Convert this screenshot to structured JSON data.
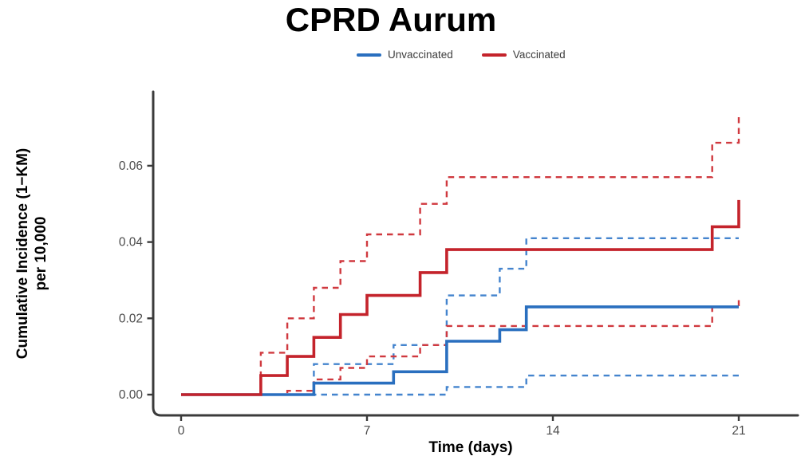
{
  "title": "CPRD Aurum",
  "legend": {
    "items": [
      {
        "label": "Unvaccinated",
        "color": "#2A6FBF"
      },
      {
        "label": "Vaccinated",
        "color": "#C4232B"
      }
    ]
  },
  "chart_data": {
    "type": "line",
    "subtype": "step-cumulative-incidence (1-KM)",
    "title": "CPRD Aurum",
    "xlabel": "Time (days)",
    "ylabel": "Cumulative Incidence (1−KM) per 10,000",
    "ylabel_line1": "Cumulative Incidence (1−KM)",
    "ylabel_line2": "per 10,000",
    "xlim": [
      0,
      21.5
    ],
    "ylim": [
      0,
      0.076
    ],
    "grid": false,
    "legend_position": "top-center",
    "x_ticks": [
      0,
      7,
      14,
      21
    ],
    "x_tick_labels": [
      "0",
      "7",
      "14",
      "21"
    ],
    "y_ticks": [
      0.0,
      0.02,
      0.04,
      0.06
    ],
    "y_tick_labels": [
      "0.00",
      "0.02",
      "0.04",
      "0.06"
    ],
    "series": [
      {
        "name": "Unvaccinated lower 95% CI",
        "group": "Unvaccinated",
        "role": "ci_lower",
        "color": "#4484CE",
        "dashed": true,
        "end_day": 21,
        "points": [
          [
            0,
            0
          ],
          [
            10,
            0.002
          ],
          [
            13,
            0.005
          ]
        ]
      },
      {
        "name": "Unvaccinated upper 95% CI",
        "group": "Unvaccinated",
        "role": "ci_upper",
        "color": "#4484CE",
        "dashed": true,
        "end_day": 21,
        "points": [
          [
            0,
            0
          ],
          [
            5,
            0.008
          ],
          [
            8,
            0.013
          ],
          [
            10,
            0.026
          ],
          [
            12,
            0.033
          ],
          [
            13,
            0.041
          ]
        ]
      },
      {
        "name": "Vaccinated lower 95% CI",
        "group": "Vaccinated",
        "role": "ci_lower",
        "color": "#D0393F",
        "dashed": true,
        "end_day": 21,
        "points": [
          [
            0,
            0
          ],
          [
            4,
            0.001
          ],
          [
            5,
            0.004
          ],
          [
            6,
            0.007
          ],
          [
            7,
            0.01
          ],
          [
            9,
            0.013
          ],
          [
            10,
            0.018
          ],
          [
            20,
            0.023
          ],
          [
            21,
            0.026
          ]
        ]
      },
      {
        "name": "Vaccinated upper 95% CI",
        "group": "Vaccinated",
        "role": "ci_upper",
        "color": "#D0393F",
        "dashed": true,
        "end_day": 21,
        "points": [
          [
            0,
            0
          ],
          [
            3,
            0.011
          ],
          [
            4,
            0.02
          ],
          [
            5,
            0.028
          ],
          [
            6,
            0.035
          ],
          [
            7,
            0.042
          ],
          [
            9,
            0.05
          ],
          [
            10,
            0.057
          ],
          [
            20,
            0.066
          ],
          [
            21,
            0.073
          ]
        ]
      },
      {
        "name": "Unvaccinated",
        "group": "Unvaccinated",
        "role": "estimate",
        "color": "#2A6FBF",
        "dashed": false,
        "end_day": 21,
        "points": [
          [
            0,
            0
          ],
          [
            5,
            0.003
          ],
          [
            8,
            0.006
          ],
          [
            10,
            0.014
          ],
          [
            12,
            0.017
          ],
          [
            13,
            0.023
          ]
        ]
      },
      {
        "name": "Vaccinated",
        "group": "Vaccinated",
        "role": "estimate",
        "color": "#C4232B",
        "dashed": false,
        "end_day": 21,
        "points": [
          [
            0,
            0
          ],
          [
            3,
            0.005
          ],
          [
            4,
            0.01
          ],
          [
            5,
            0.015
          ],
          [
            6,
            0.021
          ],
          [
            7,
            0.026
          ],
          [
            9,
            0.032
          ],
          [
            10,
            0.038
          ],
          [
            20,
            0.044
          ],
          [
            21,
            0.051
          ]
        ]
      }
    ]
  }
}
